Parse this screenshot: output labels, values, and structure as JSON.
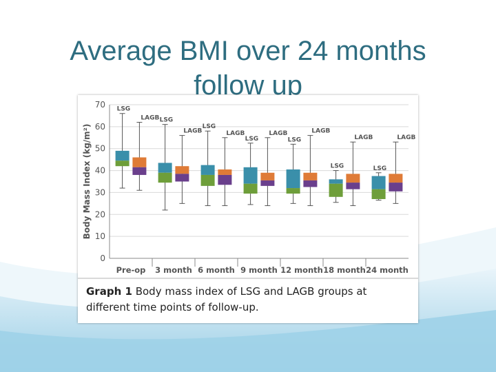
{
  "slide": {
    "title_line1": "Average BMI over 24 months",
    "title_line2": "follow up"
  },
  "caption": {
    "label": "Graph 1",
    "text": "Body mass index of LSG and LAGB groups at different time points of follow-up."
  },
  "colors": {
    "title": "#2e6d80",
    "lsg_upper": "#3a8faa",
    "lsg_lower": "#6e9e3a",
    "lagb_upper": "#df7b37",
    "lagb_lower": "#6a3f8c",
    "background_wave": "#9fd1e8"
  },
  "chart_data": {
    "type": "box",
    "ylabel": "Body Mass Index (kg/m²)",
    "ylim": [
      0,
      70
    ],
    "yticks": [
      "0",
      "10",
      "20",
      "30",
      "40",
      "50",
      "60",
      "70"
    ],
    "categories": [
      "Pre-op",
      "3 month",
      "6 month",
      "9 month",
      "12 month",
      "18 month",
      "24 month"
    ],
    "grid": true,
    "series": [
      {
        "name": "LSG",
        "labels": [
          "LSG",
          "LSG",
          "LSG",
          "LSG",
          "LSG",
          "LSG",
          "LSG"
        ],
        "boxes": [
          {
            "min": 32,
            "q1": 42,
            "median": 44.5,
            "q3": 49,
            "max": 66
          },
          {
            "min": 22,
            "q1": 34.5,
            "median": 39,
            "q3": 43.5,
            "max": 61
          },
          {
            "min": 24,
            "q1": 33,
            "median": 38,
            "q3": 42.5,
            "max": 58
          },
          {
            "min": 24.5,
            "q1": 29.5,
            "median": 34,
            "q3": 41.5,
            "max": 52.5
          },
          {
            "min": 25,
            "q1": 29.5,
            "median": 32,
            "q3": 40.5,
            "max": 52
          },
          {
            "min": 25.5,
            "q1": 28,
            "median": 34,
            "q3": 36,
            "max": 40
          },
          {
            "min": 26.5,
            "q1": 27,
            "median": 31.5,
            "q3": 37.5,
            "max": 39
          }
        ]
      },
      {
        "name": "LAGB",
        "labels": [
          "LAGB",
          "LAGB",
          "LAGB",
          "LAGB",
          "LAGB",
          "LAGB",
          "LAGB"
        ],
        "boxes": [
          {
            "min": 31,
            "q1": 38,
            "median": 41.5,
            "q3": 46,
            "max": 62
          },
          {
            "min": 25,
            "q1": 35,
            "median": 38.5,
            "q3": 42,
            "max": 56
          },
          {
            "min": 24,
            "q1": 33.5,
            "median": 38,
            "q3": 40.5,
            "max": 55
          },
          {
            "min": 24,
            "q1": 33,
            "median": 35.5,
            "q3": 39,
            "max": 55
          },
          {
            "min": 24,
            "q1": 32.5,
            "median": 35.5,
            "q3": 39,
            "max": 56
          },
          {
            "min": 24,
            "q1": 31.5,
            "median": 34.5,
            "q3": 38.5,
            "max": 53
          },
          {
            "min": 25,
            "q1": 30.5,
            "median": 34.5,
            "q3": 38.5,
            "max": 53
          }
        ]
      }
    ]
  }
}
